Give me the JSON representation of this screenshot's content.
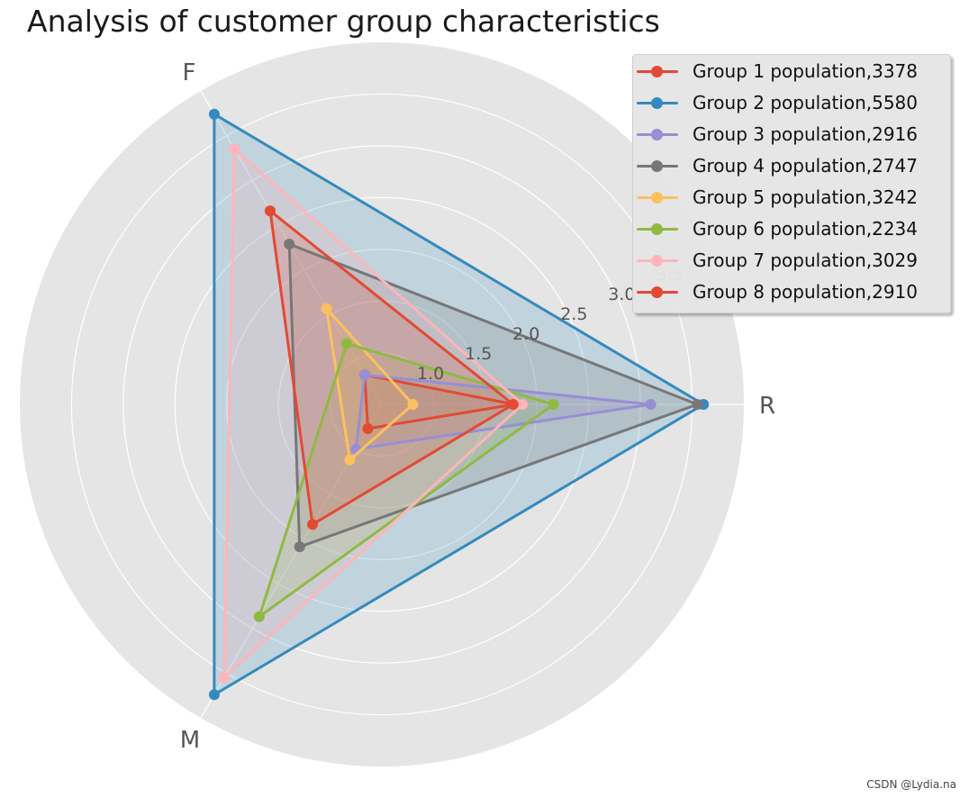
{
  "chart_data": {
    "type": "radar",
    "title": "Analysis of customer group characteristics",
    "axes": [
      "R",
      "F",
      "M"
    ],
    "rlim": [
      0.5,
      4.0
    ],
    "radial_ticks": [
      1.0,
      1.5,
      2.0,
      2.5,
      3.0,
      3.5
    ],
    "radial_tick_labels": [
      "1.0",
      "1.5",
      "2.0",
      "2.5",
      "3.0",
      "3.5"
    ],
    "grid": true,
    "legend_position": "upper-right",
    "series": [
      {
        "name": "Group 1 population,3378",
        "color": "#E24A33",
        "values": [
          1.78,
          0.83,
          0.77
        ]
      },
      {
        "name": "Group 2 population,5580",
        "color": "#348ABD",
        "values": [
          3.61,
          3.74,
          3.74
        ]
      },
      {
        "name": "Group 3 population,2916",
        "color": "#988ED5",
        "values": [
          3.1,
          0.83,
          1.0
        ]
      },
      {
        "name": "Group 4 population,2747",
        "color": "#777777",
        "values": [
          3.55,
          2.29,
          2.09
        ]
      },
      {
        "name": "Group 5 population,3242",
        "color": "#FBC15E",
        "values": [
          0.8,
          1.57,
          1.12
        ]
      },
      {
        "name": "Group 6 population,2234",
        "color": "#8EBA42",
        "values": [
          2.16,
          1.18,
          2.87
        ]
      },
      {
        "name": "Group 7 population,3029",
        "color": "#FFB5B8",
        "values": [
          1.86,
          3.35,
          3.55
        ]
      },
      {
        "name": "Group 8 population,2910",
        "color": "#E24A33",
        "values": [
          1.77,
          2.66,
          1.84
        ]
      }
    ]
  },
  "watermark": "CSDN @Lydia.na"
}
